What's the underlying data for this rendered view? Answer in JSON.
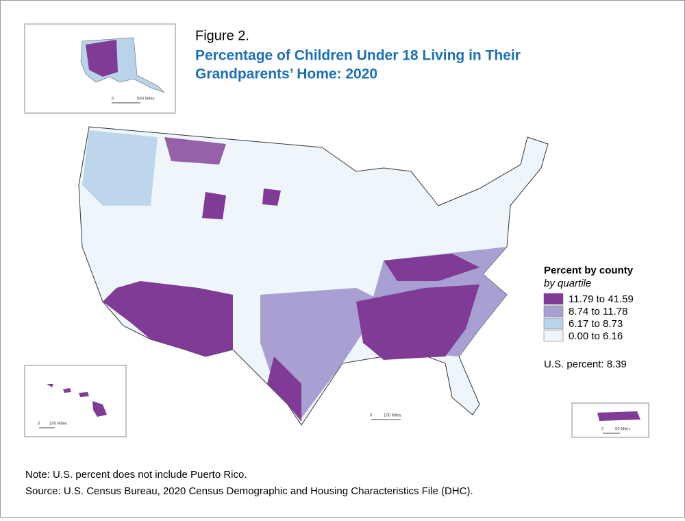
{
  "figure_label": "Figure 2.",
  "title": [
    "Percentage of Children Under 18 Living in Their",
    "Grandparents’ Home: 2020"
  ],
  "legend": {
    "title": "Percent by county",
    "subtitle": "by quartile",
    "items": [
      {
        "label": "11.79 to 41.59",
        "color": "#7f3b96"
      },
      {
        "label": "8.74 to 11.78",
        "color": "#a89fd2"
      },
      {
        "label": "6.17 to 8.73",
        "color": "#b8d3ea"
      },
      {
        "label": "0.00 to 6.16",
        "color": "#eef6fb"
      }
    ]
  },
  "us_percent": "U.S. percent: 8.39",
  "scales": {
    "alaska": [
      "0",
      "500 Miles"
    ],
    "hawaii": [
      "0",
      "100 Miles"
    ],
    "mainland": [
      "0",
      "100 Miles"
    ],
    "puerto_rico": [
      "0",
      "50 Miles"
    ]
  },
  "note": "Note: U.S. percent does not include Puerto Rico.",
  "source": "Source: U.S. Census Bureau, 2020 Census Demographic and Housing Characteristics File (DHC)."
}
